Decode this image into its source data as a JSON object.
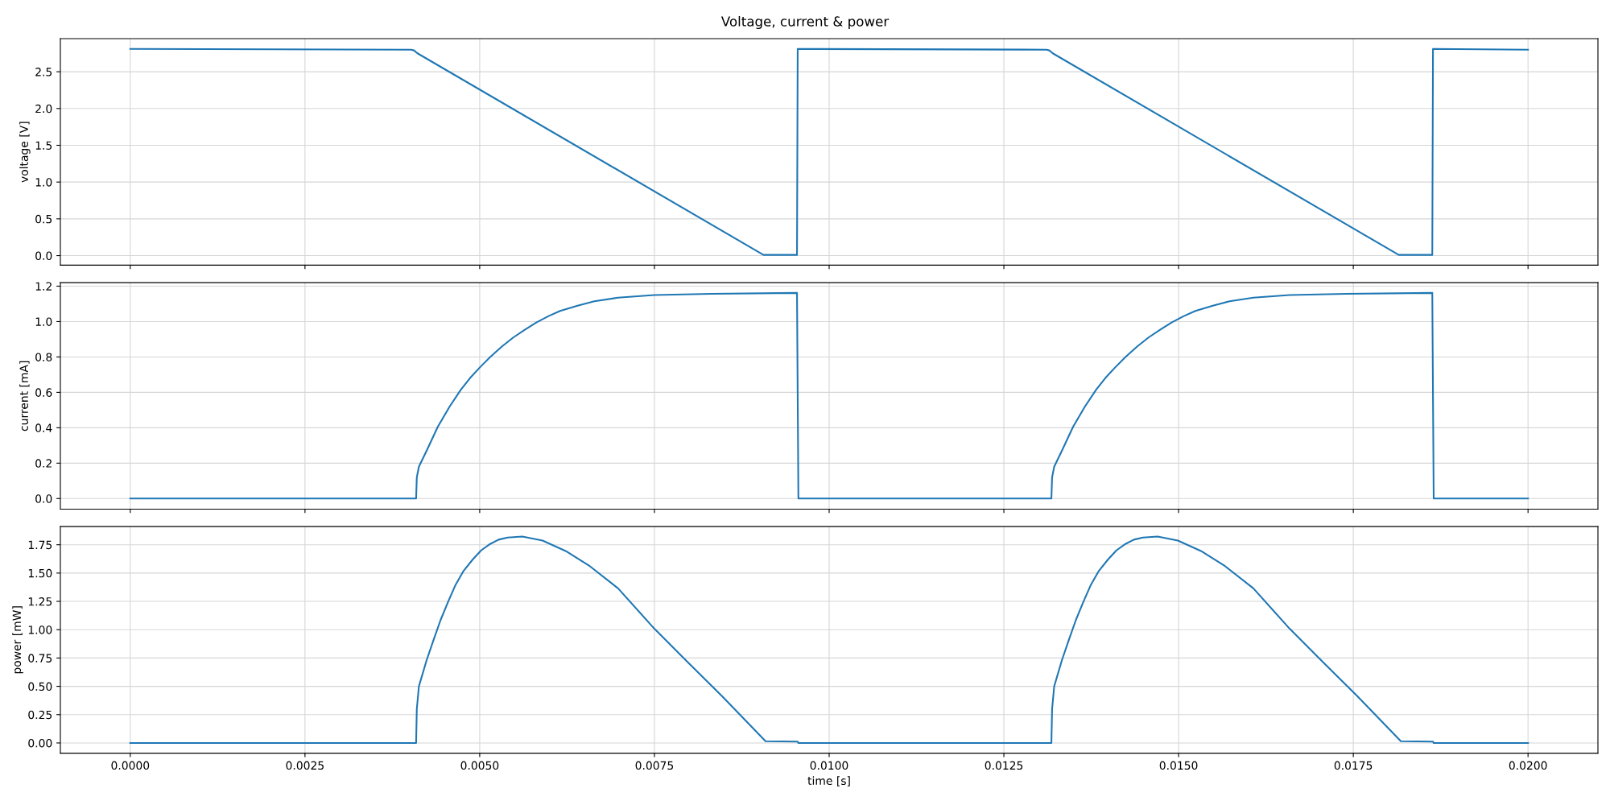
{
  "chart_data": [
    {
      "type": "line",
      "title": "Voltage, current & power",
      "ylabel": "voltage [V]",
      "color": "#1f77b4",
      "grid": true,
      "tick_labels": "y",
      "xlim": [
        -0.001,
        0.021
      ],
      "xticks": [
        0,
        0.0025,
        0.005,
        0.0075,
        0.01,
        0.0125,
        0.015,
        0.0175,
        0.02
      ],
      "ylim": [
        -0.13,
        2.95
      ],
      "yticks": [
        {
          "value": 0,
          "label": "0.0"
        },
        {
          "value": 0.5,
          "label": "0.5"
        },
        {
          "value": 1,
          "label": "1.0"
        },
        {
          "value": 1.5,
          "label": "1.5"
        },
        {
          "value": 2,
          "label": "2.0"
        },
        {
          "value": 2.5,
          "label": "2.5"
        }
      ],
      "x": [
        0,
        0.00402,
        0.00406,
        0.00411,
        0.00906,
        0.00954,
        0.00955,
        0.01311,
        0.01315,
        0.0132,
        0.01815,
        0.01863,
        0.01864,
        0.02
      ],
      "values": [
        2.81,
        2.8,
        2.79,
        2.75,
        0.01,
        0.01,
        2.81,
        2.8,
        2.79,
        2.75,
        0.01,
        0.01,
        2.81,
        2.8
      ]
    },
    {
      "type": "line",
      "ylabel": "current [mA]",
      "color": "#1f77b4",
      "grid": true,
      "tick_labels": "y",
      "xlim": [
        -0.001,
        0.021
      ],
      "xticks": [
        0,
        0.0025,
        0.005,
        0.0075,
        0.01,
        0.0125,
        0.015,
        0.0175,
        0.02
      ],
      "ylim": [
        -0.06,
        1.22
      ],
      "yticks": [
        {
          "value": 0,
          "label": "0.0"
        },
        {
          "value": 0.2,
          "label": "0.2"
        },
        {
          "value": 0.4,
          "label": "0.4"
        },
        {
          "value": 0.6,
          "label": "0.6"
        },
        {
          "value": 0.8,
          "label": "0.8"
        },
        {
          "value": 1,
          "label": "1.0"
        },
        {
          "value": 1.2,
          "label": "1.2"
        }
      ],
      "x": [
        0,
        0.00409,
        0.0041,
        0.00413,
        0.00424,
        0.0044,
        0.00457,
        0.00473,
        0.00486,
        0.005,
        0.00515,
        0.00532,
        0.00548,
        0.00565,
        0.00581,
        0.00598,
        0.00615,
        0.0064,
        0.00664,
        0.00698,
        0.0075,
        0.00831,
        0.00954,
        0.00956,
        0.01318,
        0.01319,
        0.01322,
        0.01333,
        0.01349,
        0.01366,
        0.01382,
        0.01395,
        0.01409,
        0.01424,
        0.01441,
        0.01457,
        0.01474,
        0.0149,
        0.01507,
        0.01524,
        0.01549,
        0.01573,
        0.01607,
        0.01659,
        0.0174,
        0.01863,
        0.01865,
        0.02
      ],
      "values": [
        0,
        0,
        0.12,
        0.18,
        0.27,
        0.405,
        0.52,
        0.615,
        0.68,
        0.74,
        0.8,
        0.86,
        0.91,
        0.955,
        0.995,
        1.03,
        1.06,
        1.09,
        1.115,
        1.135,
        1.15,
        1.157,
        1.162,
        0,
        0,
        0.12,
        0.18,
        0.27,
        0.405,
        0.52,
        0.615,
        0.68,
        0.74,
        0.8,
        0.86,
        0.91,
        0.955,
        0.995,
        1.03,
        1.06,
        1.09,
        1.115,
        1.135,
        1.15,
        1.157,
        1.162,
        0,
        0
      ]
    },
    {
      "type": "line",
      "ylabel": "power [mW]",
      "xlabel": "time [s]",
      "color": "#1f77b4",
      "grid": true,
      "xlim": [
        -0.001,
        0.021
      ],
      "xticks": [
        {
          "value": 0,
          "label": "0.0000"
        },
        {
          "value": 0.0025,
          "label": "0.0025"
        },
        {
          "value": 0.005,
          "label": "0.0050"
        },
        {
          "value": 0.0075,
          "label": "0.0075"
        },
        {
          "value": 0.01,
          "label": "0.0100"
        },
        {
          "value": 0.0125,
          "label": "0.0125"
        },
        {
          "value": 0.015,
          "label": "0.0150"
        },
        {
          "value": 0.0175,
          "label": "0.0175"
        },
        {
          "value": 0.02,
          "label": "0.0200"
        }
      ],
      "ylim": [
        -0.09,
        1.91
      ],
      "yticks": [
        {
          "value": 0,
          "label": "0.00"
        },
        {
          "value": 0.25,
          "label": "0.25"
        },
        {
          "value": 0.5,
          "label": "0.50"
        },
        {
          "value": 0.75,
          "label": "0.75"
        },
        {
          "value": 1,
          "label": "1.00"
        },
        {
          "value": 1.25,
          "label": "1.25"
        },
        {
          "value": 1.5,
          "label": "1.50"
        },
        {
          "value": 1.75,
          "label": "1.75"
        }
      ],
      "x": [
        0,
        0.00409,
        0.0041,
        0.00413,
        0.00424,
        0.00434,
        0.00444,
        0.00455,
        0.00465,
        0.00477,
        0.0049,
        0.00502,
        0.00515,
        0.00527,
        0.0054,
        0.00561,
        0.0059,
        0.00623,
        0.00656,
        0.00698,
        0.0075,
        0.00797,
        0.00847,
        0.00909,
        0.00955,
        0.00956,
        0.01318,
        0.01319,
        0.01322,
        0.01333,
        0.01343,
        0.01353,
        0.01364,
        0.01374,
        0.01386,
        0.01399,
        0.01411,
        0.01424,
        0.01436,
        0.01449,
        0.0147,
        0.01499,
        0.01532,
        0.01565,
        0.01607,
        0.01659,
        0.01706,
        0.01756,
        0.01818,
        0.01864,
        0.01865,
        0.02
      ],
      "values": [
        0,
        0,
        0.3,
        0.5,
        0.73,
        0.91,
        1.085,
        1.25,
        1.39,
        1.52,
        1.62,
        1.7,
        1.757,
        1.795,
        1.813,
        1.823,
        1.787,
        1.695,
        1.568,
        1.365,
        1.008,
        0.718,
        0.412,
        0.015,
        0.012,
        0,
        0,
        0.3,
        0.5,
        0.73,
        0.91,
        1.085,
        1.25,
        1.39,
        1.52,
        1.62,
        1.7,
        1.757,
        1.795,
        1.813,
        1.823,
        1.787,
        1.695,
        1.568,
        1.365,
        1.008,
        0.718,
        0.412,
        0.015,
        0.012,
        0,
        0
      ]
    }
  ]
}
